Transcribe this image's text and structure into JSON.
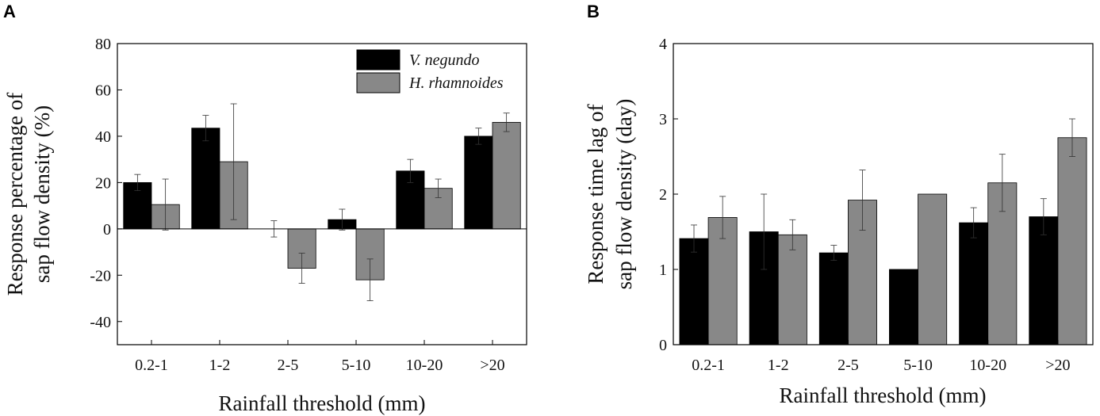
{
  "chart_data": [
    {
      "panel": "A",
      "type": "bar",
      "categories": [
        "0.2-1",
        "1-2",
        "2-5",
        "5-10",
        "10-20",
        ">20"
      ],
      "series": [
        {
          "name": "V. negundo",
          "color": "#000000",
          "values": [
            20,
            43.5,
            0,
            4,
            25,
            40
          ],
          "errors": [
            3.5,
            5.5,
            3.5,
            4.5,
            5,
            3.5
          ]
        },
        {
          "name": "H. rhamnoides",
          "color": "#888888",
          "values": [
            10.5,
            29,
            -17,
            -22,
            17.5,
            46
          ],
          "errors": [
            11,
            25,
            6.5,
            9,
            4,
            4
          ]
        }
      ],
      "ylim": [
        -50,
        80
      ],
      "yticks": [
        "80",
        "60",
        "40",
        "20",
        "0",
        "-20",
        "-40"
      ],
      "ytick_values": [
        80,
        60,
        40,
        20,
        0,
        -20,
        -40
      ],
      "ylabel_lines": [
        "Response percentage of",
        "sap flow density (%)"
      ],
      "xlabel": "Rainfall threshold (mm)",
      "legend": "top-right"
    },
    {
      "panel": "B",
      "type": "bar",
      "categories": [
        "0.2-1",
        "1-2",
        "2-5",
        "5-10",
        "10-20",
        ">20"
      ],
      "series": [
        {
          "name": "V. negundo",
          "color": "#000000",
          "values": [
            1.41,
            1.5,
            1.22,
            1.0,
            1.62,
            1.7
          ],
          "errors": [
            0.18,
            0.5,
            0.1,
            0,
            0.2,
            0.24
          ]
        },
        {
          "name": "H. rhamnoides",
          "color": "#888888",
          "values": [
            1.69,
            1.46,
            1.92,
            2.0,
            2.15,
            2.75
          ],
          "errors": [
            0.28,
            0.2,
            0.4,
            0,
            0.38,
            0.25
          ]
        }
      ],
      "ylim": [
        0,
        4
      ],
      "yticks": [
        "0",
        "1",
        "2",
        "3",
        "4"
      ],
      "ytick_values": [
        0,
        1,
        2,
        3,
        4
      ],
      "ylabel_lines": [
        "Response time lag of",
        "sap flow density (day)"
      ],
      "xlabel": "Rainfall threshold (mm)"
    }
  ]
}
